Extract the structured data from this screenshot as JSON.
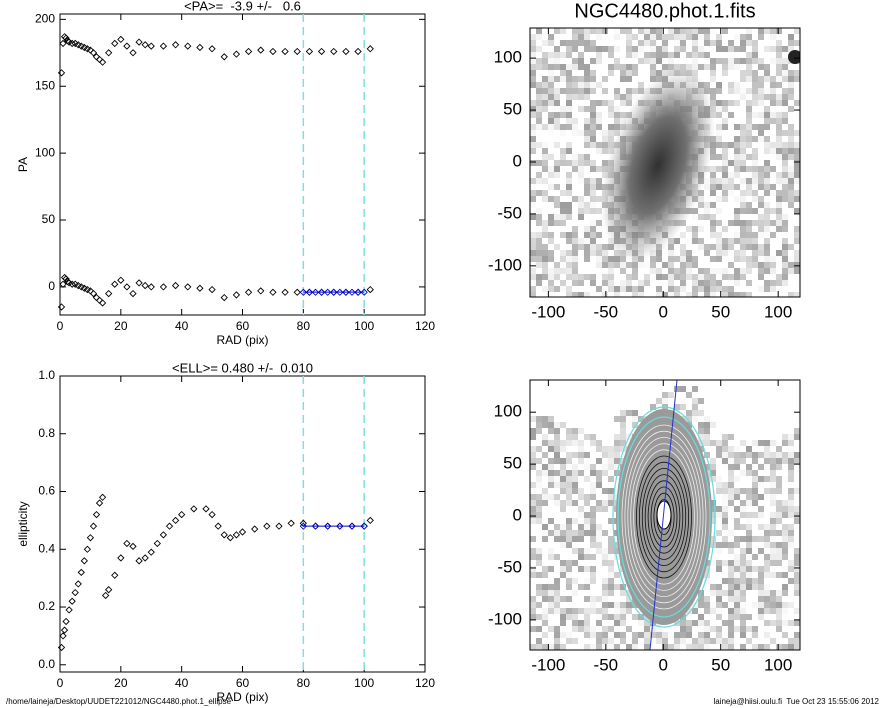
{
  "chart_data": [
    {
      "type": "scatter",
      "title": "<PA>=  -3.9 +/-   0.6",
      "x_label": "RAD (pix)",
      "y_label": "PA",
      "xlim": [
        0,
        120
      ],
      "xticks": [
        0,
        20,
        40,
        60,
        80,
        100,
        120
      ],
      "ylim": [
        -21,
        204
      ],
      "yticks": [
        0,
        50,
        100,
        150,
        200
      ],
      "vlines": [
        80,
        100
      ],
      "vline_color": "#7fdfdf",
      "hlines": [
        {
          "value": -3.9,
          "xrange": [
            80,
            100
          ],
          "color": "#0000cc"
        }
      ],
      "series": [
        {
          "color": "#000000",
          "x": [
            0.5,
            1,
            1.5,
            2,
            2.5,
            3,
            4,
            5,
            6,
            7,
            8,
            9,
            10,
            11,
            12,
            13,
            14,
            16,
            18,
            20,
            22,
            24,
            26,
            28,
            30,
            34,
            38,
            42,
            46,
            50,
            54,
            58,
            62,
            66,
            70,
            74,
            78,
            82,
            86,
            90,
            94,
            98,
            102
          ],
          "values": [
            160,
            182,
            187,
            186,
            184,
            183,
            182,
            182,
            181,
            180,
            179,
            178,
            177,
            175,
            172,
            170,
            168,
            175,
            182,
            185,
            180,
            175,
            183,
            181,
            180,
            180,
            181,
            180,
            179,
            178,
            172,
            174,
            176,
            177,
            176,
            176,
            176,
            176,
            176,
            176,
            176,
            176,
            178
          ]
        },
        {
          "color": "#000000",
          "x": [
            0.5,
            1,
            1.5,
            2,
            2.5,
            3,
            4,
            5,
            6,
            7,
            8,
            9,
            10,
            11,
            12,
            13,
            14,
            16,
            18,
            20,
            22,
            24,
            26,
            28,
            30,
            34,
            38,
            42,
            46,
            50,
            54,
            58,
            62,
            66,
            70,
            74,
            78,
            82,
            86,
            90,
            94,
            98,
            102
          ],
          "values": [
            -15,
            2,
            7,
            6,
            4,
            3,
            2,
            2,
            1,
            0,
            -1,
            -2,
            -3,
            -5,
            -8,
            -10,
            -12,
            -5,
            2,
            5,
            0,
            -5,
            3,
            1,
            0,
            0,
            1,
            0,
            -1,
            -2,
            -8,
            -6,
            -4,
            -3,
            -4,
            -4,
            -4,
            -4,
            -4,
            -4,
            -4,
            -4,
            -2
          ]
        },
        {
          "color": "#0000cc",
          "x": [
            80,
            82,
            84,
            86,
            88,
            90,
            92,
            94,
            96,
            98,
            100
          ],
          "values": [
            -4,
            -4,
            -4,
            -4,
            -4,
            -4,
            -4,
            -4,
            -4,
            -4,
            -4
          ]
        }
      ]
    },
    {
      "type": "image",
      "title": "NGC4480.phot.1.fits",
      "xlim": [
        -116,
        119
      ],
      "xticks": [
        -100,
        -50,
        0,
        50,
        100
      ],
      "ylim": [
        -130,
        129
      ],
      "yticks": [
        -100,
        -50,
        0,
        50,
        100
      ]
    },
    {
      "type": "scatter",
      "title": "<ELL>= 0.480 +/-  0.010",
      "x_label": "RAD (pix)",
      "y_label": "ellipticity",
      "xlim": [
        0,
        120
      ],
      "xticks": [
        0,
        20,
        40,
        60,
        80,
        100,
        120
      ],
      "ylim": [
        -0.025,
        1.0
      ],
      "yticks": [
        {
          "value": 0,
          "label": "0.0"
        },
        0.2,
        0.4,
        0.6,
        0.8,
        {
          "value": 1,
          "label": "1.0"
        }
      ],
      "vlines": [
        80,
        100
      ],
      "vline_color": "#7fdfdf",
      "hlines": [
        {
          "value": 0.48,
          "xrange": [
            80,
            100
          ],
          "color": "#0000cc"
        }
      ],
      "series": [
        {
          "color": "#000000",
          "x": [
            0.5,
            1,
            1.5,
            2,
            3,
            4,
            5,
            6,
            7,
            8,
            9,
            10,
            11,
            12,
            13,
            14,
            15,
            16,
            18,
            20,
            22,
            24,
            26,
            28,
            30,
            32,
            34,
            36,
            38,
            40,
            44,
            48,
            50,
            52,
            54,
            56,
            58,
            60,
            64,
            68,
            72,
            76,
            80,
            84,
            88,
            92,
            96,
            100,
            102
          ],
          "values": [
            0.06,
            0.1,
            0.12,
            0.15,
            0.19,
            0.22,
            0.25,
            0.28,
            0.32,
            0.36,
            0.4,
            0.44,
            0.48,
            0.52,
            0.56,
            0.58,
            0.24,
            0.26,
            0.31,
            0.37,
            0.42,
            0.41,
            0.36,
            0.37,
            0.39,
            0.42,
            0.45,
            0.48,
            0.5,
            0.52,
            0.54,
            0.54,
            0.52,
            0.48,
            0.45,
            0.44,
            0.45,
            0.46,
            0.47,
            0.48,
            0.48,
            0.49,
            0.49,
            0.48,
            0.48,
            0.48,
            0.48,
            0.48,
            0.5
          ]
        },
        {
          "color": "#0000cc",
          "x": [
            80,
            84,
            88,
            92,
            96,
            100
          ],
          "values": [
            0.48,
            0.48,
            0.48,
            0.48,
            0.48,
            0.48
          ]
        }
      ]
    },
    {
      "type": "contour",
      "xlim": [
        -116,
        119
      ],
      "xticks": [
        -100,
        -50,
        0,
        50,
        100
      ],
      "ylim": [
        -129,
        131
      ],
      "yticks": [
        -100,
        -50,
        0,
        50,
        100
      ]
    }
  ],
  "footer": {
    "left": "/home/laineja/Desktop/UUDET221012/NGC4480.phot.1_ellipse",
    "right": "laineja@hiisi.oulu.fi  Tue Oct 23 15:55:06 2012"
  }
}
